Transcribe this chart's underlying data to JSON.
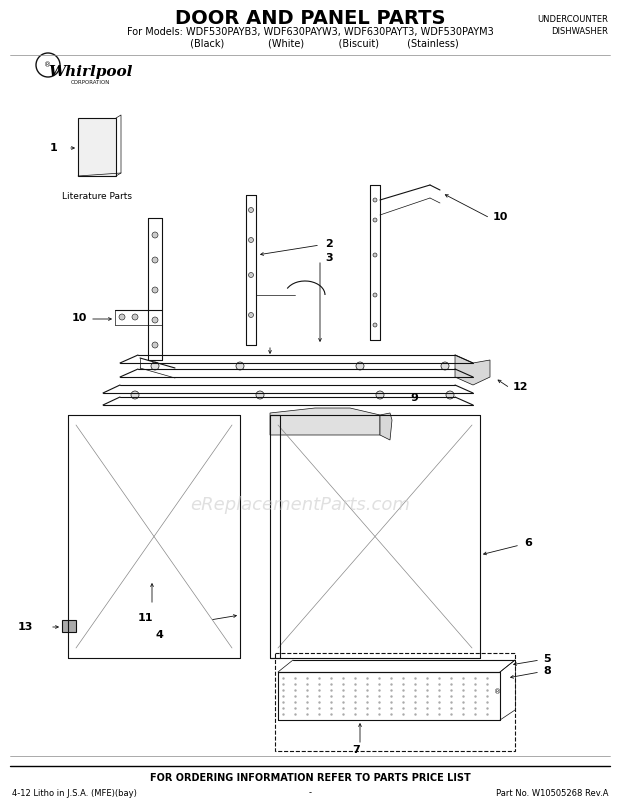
{
  "title": "DOOR AND PANEL PARTS",
  "subtitle": "For Models: WDF530PAYB3, WDF630PAYW3, WDF630PAYT3, WDF530PAYM3",
  "subtitle2": "         (Black)              (White)           (Biscuit)         (Stainless)",
  "top_right": "UNDERCOUNTER\nDISHWASHER",
  "watermark": "eReplacementParts.com",
  "footer_center": "FOR ORDERING INFORMATION REFER TO PARTS PRICE LIST",
  "footer_left": "4-12 Litho in J.S.A. (MFE)(bay)",
  "footer_right": "Part No. W10505268 Rev.A",
  "footer_mid": "-",
  "bg_color": "#ffffff",
  "text_color": "#000000",
  "watermark_color": "#cccccc"
}
